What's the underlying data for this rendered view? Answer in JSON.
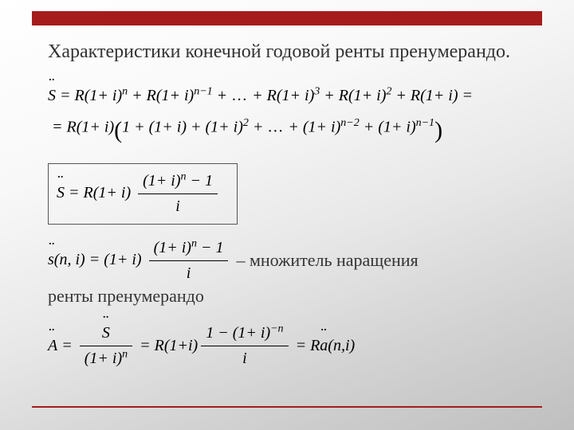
{
  "colors": {
    "accent": "#a61c1c",
    "text": "#333333",
    "math_text": "#000000",
    "box_border": "#555555",
    "bg_gradient_start": "#ffffff",
    "bg_gradient_end": "#bfbfbf"
  },
  "title": "Характеристики конечной годовой ренты пренумерандо.",
  "line1a": "S̈ = R(1+ i)",
  "line1a_exp": "n",
  "line1b": " + R(1+ i)",
  "line1b_exp": "n−1",
  "line1c": " + … + R(1+ i)",
  "line1c_exp": "3",
  "line1d": " + R(1+ i)",
  "line1d_exp": "2",
  "line1e": " + R(1+ i) =",
  "line2a": "= R(1+ i)",
  "line2b": "1 + (1+ i) + (1+ i)",
  "line2b_exp": "2",
  "line2c": " + … + (1+ i)",
  "line2c_exp": "n−2",
  "line2d": " + (1+ i)",
  "line2d_exp": "n−1",
  "boxed_lhs": "S̈ = R(1+ i)",
  "frac1_num_a": "(1+ i)",
  "frac1_num_exp": "n",
  "frac1_num_b": " − 1",
  "frac1_den": "i",
  "mult_lhs": "s̈(n, i) = (1+ i)",
  "frac2_num_a": "(1+ i)",
  "frac2_num_exp": "n",
  "frac2_num_b": " − 1",
  "frac2_den": "i",
  "mult_text": "– множитель наращения",
  "mult_text2": "ренты пренумерандо",
  "fin_lhs": "Ä = ",
  "fin_frac1_num": "S̈",
  "fin_frac1_den_a": "(1+ i)",
  "fin_frac1_den_exp": "n",
  "fin_mid": " = R(1+ i)",
  "fin_frac2_num_a": "1 − (1+ i)",
  "fin_frac2_num_exp": "−n",
  "fin_frac2_den": "i",
  "fin_rhs": " = Rä(n, i)"
}
